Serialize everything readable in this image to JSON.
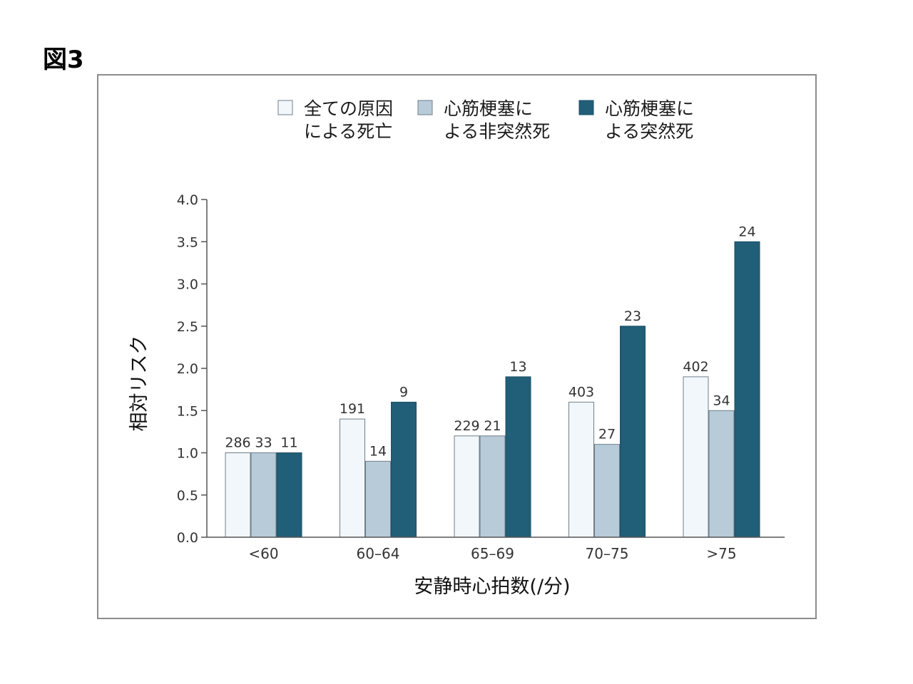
{
  "figure_label": "図3",
  "chart_data": {
    "type": "bar",
    "title": "",
    "xlabel": "安静時心拍数(/分)",
    "ylabel": "相対リスク",
    "ylim": [
      0,
      4.0
    ],
    "yticks": [
      "0.0",
      "0.5",
      "1.0",
      "1.5",
      "2.0",
      "2.5",
      "3.0",
      "3.5",
      "4.0"
    ],
    "grid": false,
    "legend_position": "top",
    "categories": [
      "<60",
      "60–64",
      "65–69",
      "70–75",
      ">75"
    ],
    "series": [
      {
        "name_lines": [
          "全ての原因",
          "による死亡"
        ],
        "color": "#f2f7fb",
        "values": [
          1.0,
          1.4,
          1.2,
          1.6,
          1.9
        ],
        "labels": [
          "286",
          "191",
          "229",
          "403",
          "402"
        ]
      },
      {
        "name_lines": [
          "心筋梗塞に",
          "よる非突然死"
        ],
        "color": "#b8cbd9",
        "values": [
          1.0,
          0.9,
          1.2,
          1.1,
          1.5
        ],
        "labels": [
          "33",
          "14",
          "21",
          "27",
          "34"
        ]
      },
      {
        "name_lines": [
          "心筋梗塞に",
          "よる突然死"
        ],
        "color": "#215e78",
        "values": [
          1.0,
          1.6,
          1.9,
          2.5,
          3.5
        ],
        "labels": [
          "11",
          "9",
          "13",
          "23",
          "24"
        ]
      }
    ]
  }
}
